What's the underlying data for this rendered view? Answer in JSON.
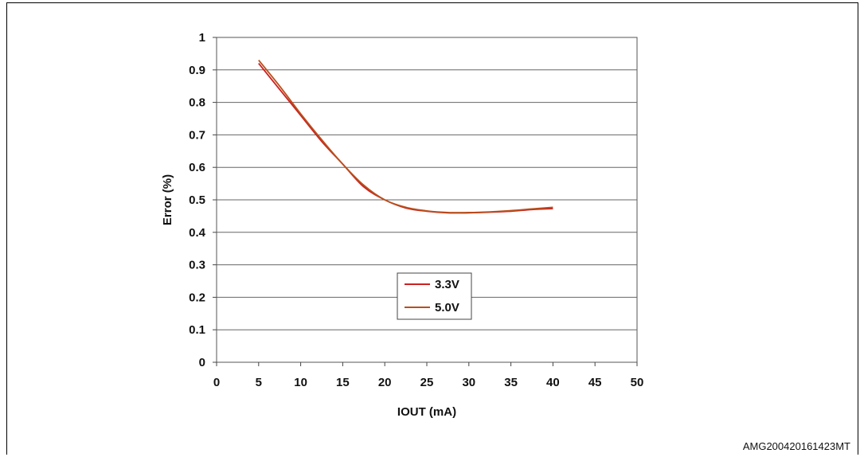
{
  "footer": {
    "figure_code": "AMG200420161423MT"
  },
  "chart_data": {
    "type": "line",
    "xlabel": "IOUT (mA)",
    "ylabel": "Error (%)",
    "xlim": [
      0,
      50
    ],
    "ylim": [
      0,
      1
    ],
    "xticks": [
      0,
      5,
      10,
      15,
      20,
      25,
      30,
      35,
      40,
      45,
      50
    ],
    "yticks": [
      0,
      0.1,
      0.2,
      0.3,
      0.4,
      0.5,
      0.6,
      0.7,
      0.8,
      0.9,
      1
    ],
    "ytick_labels": [
      "0",
      "0.1",
      "0.2",
      "0.3",
      "0.4",
      "0.5",
      "0.6",
      "0.7",
      "0.8",
      "0.9",
      "1"
    ],
    "grid": "horizontal",
    "legend_position": "inside-lower-center",
    "series": [
      {
        "name": "3.3V",
        "color": "#cc2020",
        "x": [
          5,
          7.5,
          10,
          12.5,
          15,
          17.5,
          20,
          22.5,
          25,
          27.5,
          30,
          32.5,
          35,
          37.5,
          40
        ],
        "y": [
          0.92,
          0.84,
          0.76,
          0.68,
          0.61,
          0.54,
          0.5,
          0.475,
          0.465,
          0.46,
          0.46,
          0.462,
          0.465,
          0.47,
          0.473
        ]
      },
      {
        "name": "5.0V",
        "color": "#b8501c",
        "x": [
          5,
          7.5,
          10,
          12.5,
          15,
          17.5,
          20,
          22.5,
          25,
          27.5,
          30,
          32.5,
          35,
          37.5,
          40
        ],
        "y": [
          0.93,
          0.85,
          0.765,
          0.685,
          0.61,
          0.545,
          0.5,
          0.477,
          0.466,
          0.461,
          0.461,
          0.463,
          0.467,
          0.472,
          0.477
        ]
      }
    ]
  }
}
